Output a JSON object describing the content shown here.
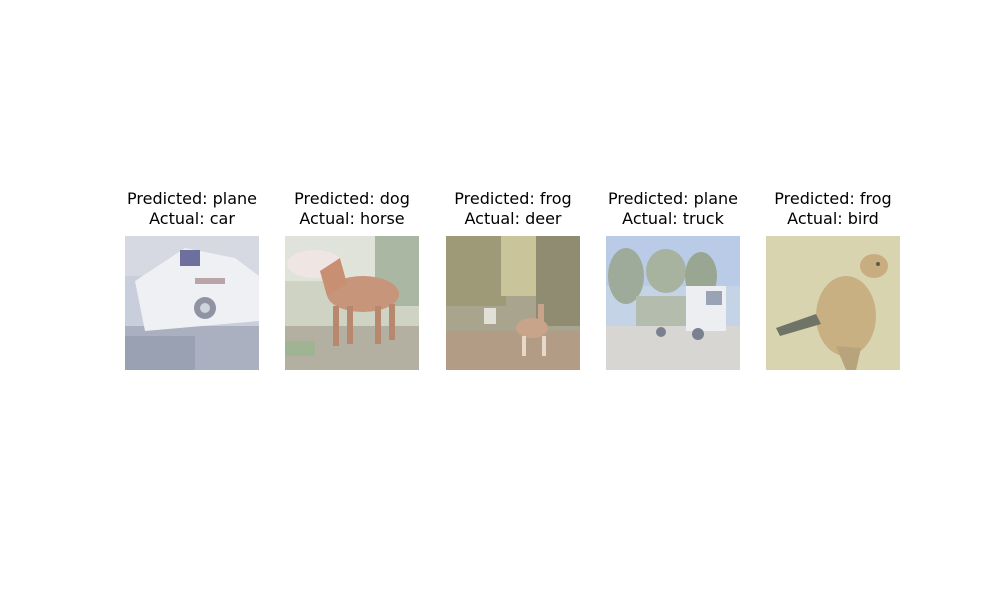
{
  "panels": [
    {
      "predicted": "Predicted: plane",
      "actual": "Actual: car",
      "image": "car-photo",
      "colors": {
        "bg": "#c9cedc",
        "accent": "#e8ecf3"
      }
    },
    {
      "predicted": "Predicted: dog",
      "actual": "Actual: horse",
      "image": "horse-photo",
      "colors": {
        "bg": "#c8cdbb",
        "accent": "#c7957a"
      }
    },
    {
      "predicted": "Predicted: frog",
      "actual": "Actual: deer",
      "image": "deer-photo",
      "colors": {
        "bg": "#b7b29a",
        "accent": "#c7a48a"
      }
    },
    {
      "predicted": "Predicted: plane",
      "actual": "Actual: truck",
      "image": "truck-photo",
      "colors": {
        "bg": "#c5d3e6",
        "accent": "#e6e9ee"
      }
    },
    {
      "predicted": "Predicted: frog",
      "actual": "Actual: bird",
      "image": "bird-photo",
      "colors": {
        "bg": "#d8d4b0",
        "accent": "#c9b083"
      }
    }
  ]
}
